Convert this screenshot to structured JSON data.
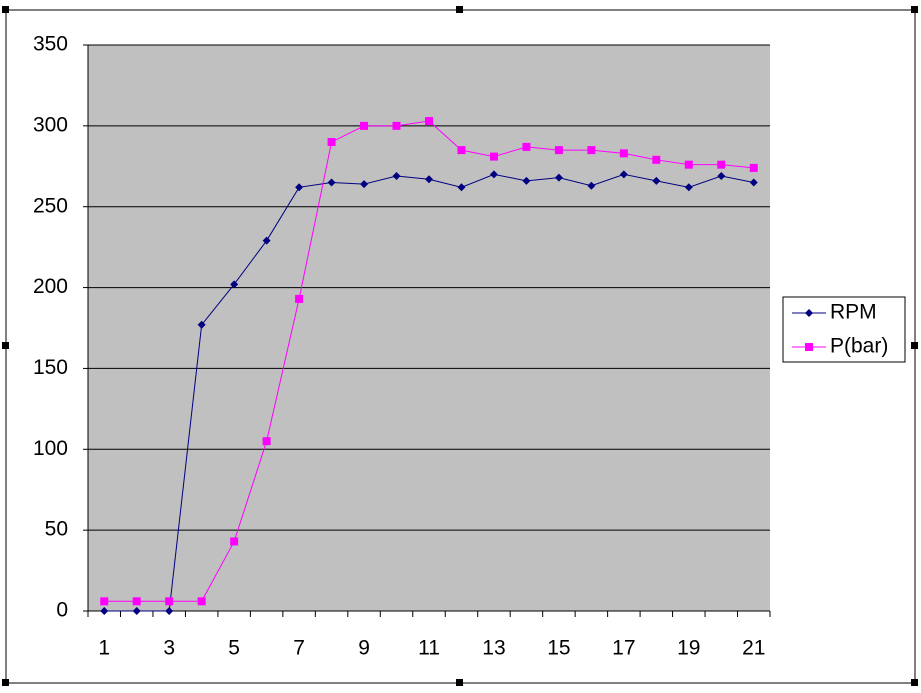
{
  "chart_data": {
    "type": "line",
    "categories": [
      1,
      null,
      3,
      null,
      5,
      null,
      7,
      null,
      9,
      null,
      11,
      null,
      13,
      null,
      15,
      null,
      17,
      null,
      19,
      null,
      21
    ],
    "series": [
      {
        "name": "RPM",
        "color": "#000080",
        "marker": "diamond",
        "values": [
          0,
          0,
          0,
          177,
          202,
          229,
          262,
          265,
          264,
          269,
          267,
          262,
          270,
          266,
          268,
          263,
          270,
          266,
          262,
          269,
          265
        ]
      },
      {
        "name": "P(bar)",
        "color": "#ff00ff",
        "marker": "square",
        "values": [
          6,
          6,
          6,
          6,
          43,
          105,
          193,
          290,
          300,
          300,
          303,
          285,
          281,
          287,
          285,
          285,
          283,
          279,
          276,
          276,
          274
        ]
      }
    ],
    "ylim": [
      0,
      350
    ],
    "yticks": [
      0,
      50,
      100,
      150,
      200,
      250,
      300,
      350
    ],
    "grid": true,
    "legend": "right"
  }
}
